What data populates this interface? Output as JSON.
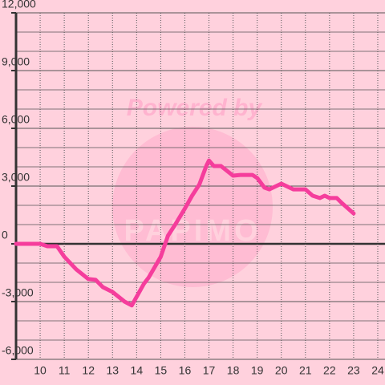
{
  "chart_data": {
    "type": "line",
    "watermark": [
      "Powered by",
      "PAPIMO"
    ],
    "x": [
      9,
      9.5,
      10,
      10.3,
      10.7,
      11,
      11.5,
      12,
      12.3,
      12.6,
      13,
      13.5,
      13.8,
      14,
      14.3,
      14.5,
      15,
      15.3,
      15.6,
      16,
      16.3,
      16.6,
      16.9,
      17,
      17.2,
      17.5,
      18,
      18.3,
      18.8,
      19,
      19.3,
      19.5,
      20,
      20.5,
      21,
      21.3,
      21.6,
      21.8,
      22,
      22.3,
      22.5,
      23
    ],
    "series": [
      {
        "color": "#f53d9c",
        "values": [
          0,
          0,
          0,
          -125,
          -125,
          -670,
          -1330,
          -1830,
          -1870,
          -2250,
          -2500,
          -3000,
          -3200,
          -2750,
          -2080,
          -1750,
          -670,
          420,
          1000,
          1830,
          2500,
          3080,
          4080,
          4330,
          4040,
          4040,
          3540,
          3580,
          3580,
          3420,
          2920,
          2830,
          3125,
          2830,
          2830,
          2500,
          2380,
          2500,
          2380,
          2380,
          2130,
          1580
        ]
      }
    ],
    "xlim": [
      9,
      24.3
    ],
    "xticks": [
      10,
      11,
      12,
      13,
      14,
      15,
      16,
      17,
      18,
      19,
      20,
      21,
      22,
      23,
      24
    ],
    "ylim": [
      -6000,
      12000
    ],
    "yticks": [
      {
        "value": -6000,
        "label": "-6,000"
      },
      {
        "value": -3000,
        "label": "-3,000"
      },
      0,
      {
        "value": 3000,
        "label": "3,000"
      },
      {
        "value": 6000,
        "label": "6,000"
      },
      {
        "value": 9000,
        "label": "9,000"
      },
      {
        "value": 12000,
        "label": "12,000"
      }
    ],
    "yminorticks": [
      -5000,
      -4000,
      -2000,
      -1000,
      1000,
      2000,
      4000,
      5000,
      7000,
      8000,
      10000,
      11000
    ],
    "grid": true
  }
}
